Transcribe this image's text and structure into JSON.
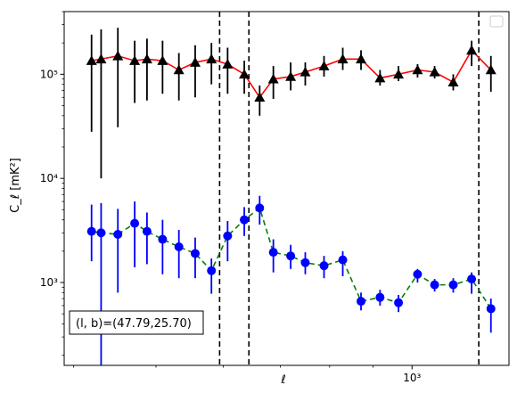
{
  "chart_data": {
    "type": "scatter",
    "xscale": "log",
    "yscale": "log",
    "xlabel": "ℓ",
    "ylabel": "C_ℓ  [mK²]",
    "xlim": [
      390,
      1300
    ],
    "ylim": [
      160,
      400000
    ],
    "x_tick_labels": [
      {
        "value": 1000,
        "text": "10³"
      }
    ],
    "y_tick_labels": [
      {
        "value": 1000,
        "text": "10³"
      },
      {
        "value": 10000,
        "text": "10⁴"
      },
      {
        "value": 100000,
        "text": "10⁵"
      }
    ],
    "annotation": "(l, b)=(47.79,25.70)",
    "legend_placement": "top-right",
    "vlines": [
      594,
      643,
      1198
    ],
    "series": [
      {
        "color": "#000000",
        "line_color": "#ff0000",
        "line_style": "solid",
        "marker": "triangle",
        "points": [
          {
            "x": 420,
            "y": 135000,
            "lo": 28000,
            "hi": 240000
          },
          {
            "x": 431,
            "y": 140000,
            "lo": 10000,
            "hi": 270000
          },
          {
            "x": 451,
            "y": 150000,
            "lo": 31000,
            "hi": 280000
          },
          {
            "x": 472,
            "y": 135000,
            "lo": 53000,
            "hi": 210000
          },
          {
            "x": 488,
            "y": 140000,
            "lo": 56000,
            "hi": 220000
          },
          {
            "x": 509,
            "y": 135000,
            "lo": 65000,
            "hi": 210000
          },
          {
            "x": 532,
            "y": 110000,
            "lo": 56000,
            "hi": 160000
          },
          {
            "x": 556,
            "y": 130000,
            "lo": 60000,
            "hi": 190000
          },
          {
            "x": 581,
            "y": 140000,
            "lo": 80000,
            "hi": 200000
          },
          {
            "x": 607,
            "y": 125000,
            "lo": 65000,
            "hi": 180000
          },
          {
            "x": 635,
            "y": 100000,
            "lo": 65000,
            "hi": 135000
          },
          {
            "x": 662,
            "y": 60000,
            "lo": 40000,
            "hi": 78000
          },
          {
            "x": 687,
            "y": 90000,
            "lo": 58000,
            "hi": 120000
          },
          {
            "x": 720,
            "y": 95000,
            "lo": 70000,
            "hi": 130000
          },
          {
            "x": 749,
            "y": 105000,
            "lo": 78000,
            "hi": 130000
          },
          {
            "x": 788,
            "y": 120000,
            "lo": 95000,
            "hi": 150000
          },
          {
            "x": 829,
            "y": 140000,
            "lo": 110000,
            "hi": 180000
          },
          {
            "x": 871,
            "y": 140000,
            "lo": 110000,
            "hi": 170000
          },
          {
            "x": 917,
            "y": 92000,
            "lo": 78000,
            "hi": 110000
          },
          {
            "x": 964,
            "y": 100000,
            "lo": 86000,
            "hi": 120000
          },
          {
            "x": 1015,
            "y": 110000,
            "lo": 93000,
            "hi": 125000
          },
          {
            "x": 1063,
            "y": 105000,
            "lo": 91000,
            "hi": 120000
          },
          {
            "x": 1118,
            "y": 84000,
            "lo": 70000,
            "hi": 100000
          },
          {
            "x": 1175,
            "y": 170000,
            "lo": 120000,
            "hi": 210000
          },
          {
            "x": 1238,
            "y": 110000,
            "lo": 68000,
            "hi": 150000
          }
        ]
      },
      {
        "color": "#0000ff",
        "line_color": "#008000",
        "line_style": "dashed",
        "marker": "circle",
        "points": [
          {
            "x": 420,
            "y": 3100,
            "lo": 1600,
            "hi": 5600
          },
          {
            "x": 431,
            "y": 3000,
            "lo": 150,
            "hi": 5800
          },
          {
            "x": 451,
            "y": 2900,
            "lo": 800,
            "hi": 5100
          },
          {
            "x": 472,
            "y": 3700,
            "lo": 1400,
            "hi": 6000
          },
          {
            "x": 488,
            "y": 3100,
            "lo": 1500,
            "hi": 4700
          },
          {
            "x": 509,
            "y": 2600,
            "lo": 1200,
            "hi": 4000
          },
          {
            "x": 532,
            "y": 2200,
            "lo": 1100,
            "hi": 3200
          },
          {
            "x": 556,
            "y": 1900,
            "lo": 1100,
            "hi": 2700
          },
          {
            "x": 581,
            "y": 1300,
            "lo": 780,
            "hi": 1700
          },
          {
            "x": 607,
            "y": 2800,
            "lo": 1600,
            "hi": 3900
          },
          {
            "x": 635,
            "y": 4000,
            "lo": 2800,
            "hi": 5300
          },
          {
            "x": 662,
            "y": 5200,
            "lo": 3600,
            "hi": 6800
          },
          {
            "x": 687,
            "y": 1950,
            "lo": 1250,
            "hi": 2600
          },
          {
            "x": 720,
            "y": 1800,
            "lo": 1350,
            "hi": 2300
          },
          {
            "x": 749,
            "y": 1550,
            "lo": 1200,
            "hi": 1950
          },
          {
            "x": 788,
            "y": 1450,
            "lo": 1100,
            "hi": 1800
          },
          {
            "x": 829,
            "y": 1650,
            "lo": 1150,
            "hi": 2000
          },
          {
            "x": 871,
            "y": 660,
            "lo": 540,
            "hi": 800
          },
          {
            "x": 917,
            "y": 720,
            "lo": 600,
            "hi": 850
          },
          {
            "x": 964,
            "y": 640,
            "lo": 520,
            "hi": 760
          },
          {
            "x": 1015,
            "y": 1200,
            "lo": 1000,
            "hi": 1350
          },
          {
            "x": 1063,
            "y": 950,
            "lo": 820,
            "hi": 1080
          },
          {
            "x": 1118,
            "y": 950,
            "lo": 800,
            "hi": 1100
          },
          {
            "x": 1175,
            "y": 1080,
            "lo": 780,
            "hi": 1250
          },
          {
            "x": 1238,
            "y": 560,
            "lo": 330,
            "hi": 700
          }
        ]
      }
    ]
  }
}
